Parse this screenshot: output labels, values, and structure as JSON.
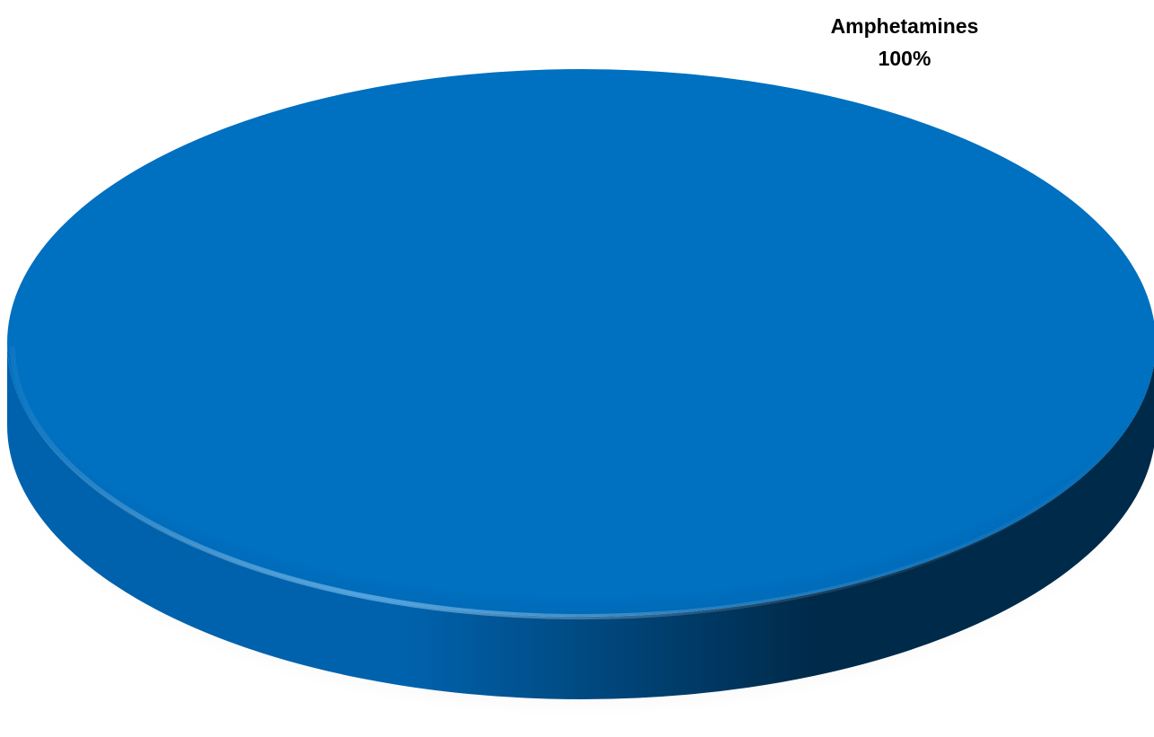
{
  "chart_data": {
    "type": "pie",
    "style": "3d",
    "title": "",
    "categories": [
      "Amphetamines"
    ],
    "values": [
      100
    ],
    "data_labels": [
      {
        "category": "Amphetamines",
        "percent": "100%"
      }
    ],
    "colors": {
      "slice_top": "#0070C0",
      "slice_side_light": "#0062AC",
      "slice_side_dark": "#002A4A"
    },
    "legend": "none"
  }
}
